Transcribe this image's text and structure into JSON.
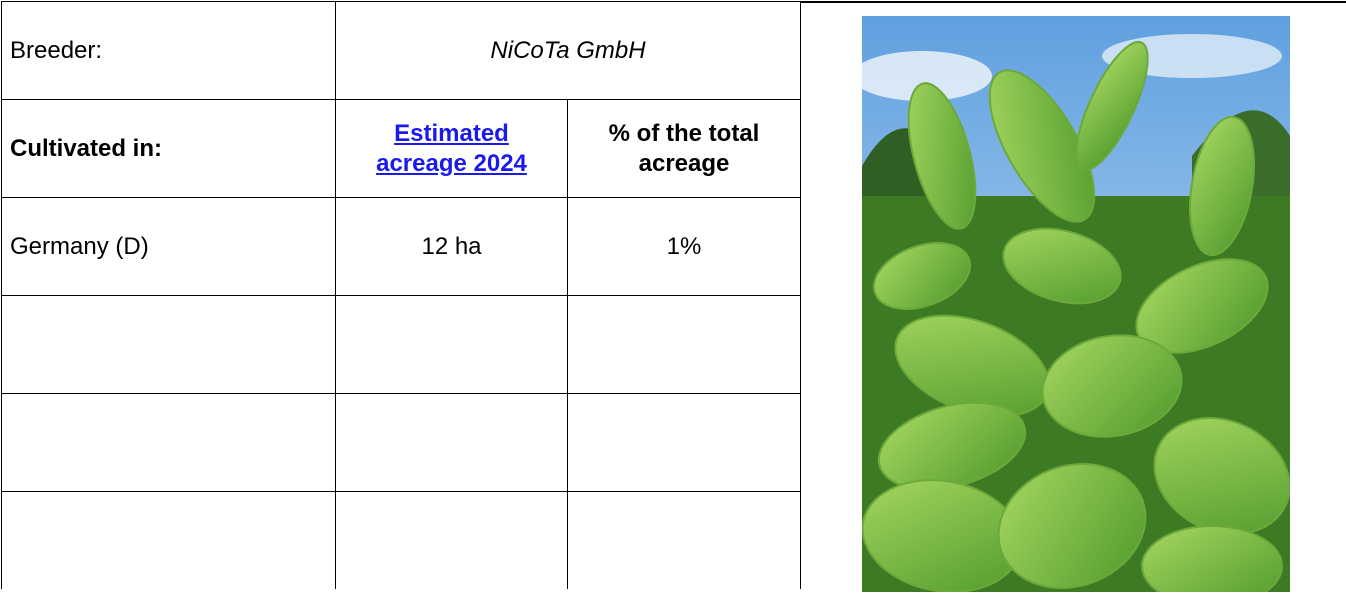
{
  "breeder": {
    "label": "Breeder:",
    "value": "NiCoTa GmbH"
  },
  "table": {
    "header": [
      "Cultivated in:",
      "Estimated acreage 2024",
      "% of the total acreage"
    ],
    "rows": [
      [
        "Germany (D)",
        "12 ha",
        "1%"
      ]
    ]
  }
}
